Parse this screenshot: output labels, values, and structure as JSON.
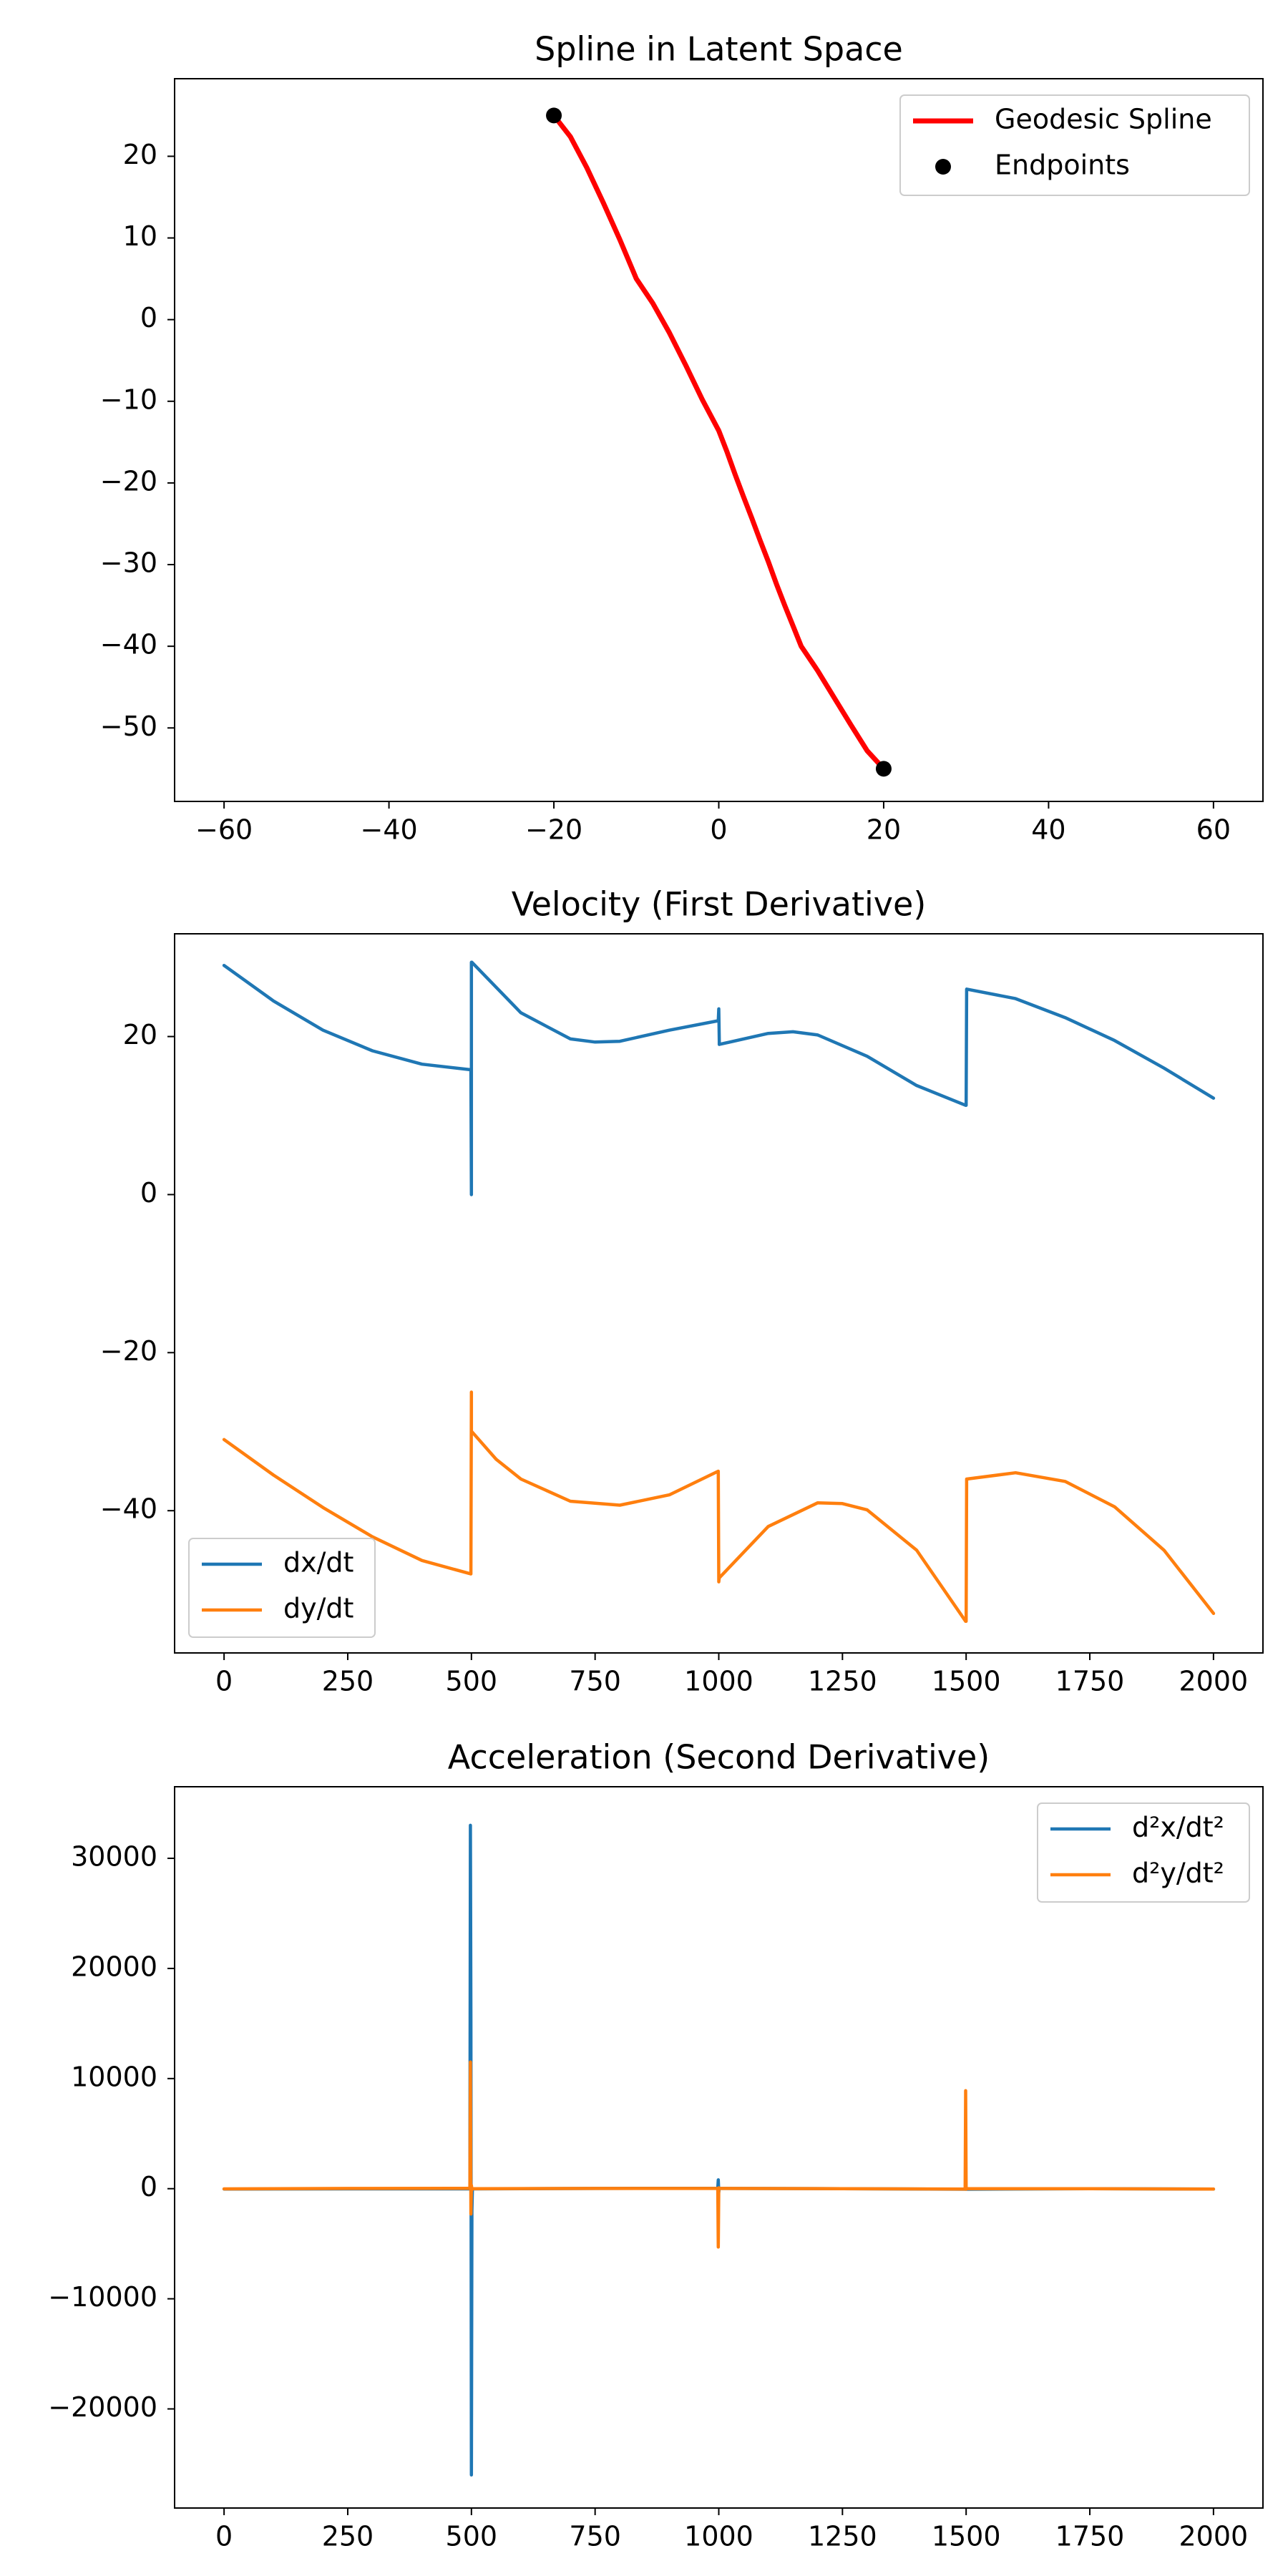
{
  "chart_data": [
    {
      "type": "line",
      "title": "Spline in Latent Space",
      "xlim": [
        -66,
        66
      ],
      "ylim": [
        -59,
        29.5
      ],
      "xticks": [
        -60,
        -40,
        -20,
        0,
        20,
        40,
        60
      ],
      "yticks": [
        20,
        10,
        0,
        -10,
        -20,
        -30,
        -40,
        -50
      ],
      "xtick_labels": [
        "−60",
        "−40",
        "−20",
        "0",
        "20",
        "40",
        "60"
      ],
      "ytick_labels": [
        "20",
        "10",
        "0",
        "−10",
        "−20",
        "−30",
        "−40",
        "−50"
      ],
      "grid": false,
      "legend": "upper right",
      "series": [
        {
          "name": "Geodesic Spline",
          "kind": "line",
          "color": "#ff0000",
          "x": [
            -20,
            -18,
            -16,
            -14,
            -12,
            -10,
            -8,
            -6,
            -4,
            -2,
            0,
            1,
            2,
            3,
            4,
            5,
            6,
            7,
            8,
            9,
            10,
            12,
            14,
            16,
            18,
            20
          ],
          "y": [
            25,
            22.4,
            18.6,
            14.3,
            9.8,
            5,
            2,
            -1.6,
            -5.6,
            -9.8,
            -13.6,
            -16.2,
            -19,
            -21.7,
            -24.3,
            -27,
            -29.6,
            -32.4,
            -35,
            -37.5,
            -40,
            -43,
            -46.3,
            -49.6,
            -52.8,
            -55
          ]
        },
        {
          "name": "Endpoints",
          "kind": "scatter",
          "color": "#000000",
          "x": [
            -20,
            20
          ],
          "y": [
            25,
            -55
          ]
        }
      ]
    },
    {
      "type": "line",
      "title": "Velocity (First Derivative)",
      "xlim": [
        -100,
        2100
      ],
      "ylim": [
        -58,
        33
      ],
      "xticks": [
        0,
        250,
        500,
        750,
        1000,
        1250,
        1500,
        1750,
        2000
      ],
      "yticks": [
        20,
        0,
        -20,
        -40
      ],
      "xtick_labels": [
        "0",
        "250",
        "500",
        "750",
        "1000",
        "1250",
        "1500",
        "1750",
        "2000"
      ],
      "ytick_labels": [
        "20",
        "0",
        "−20",
        "−40"
      ],
      "grid": false,
      "legend": "lower left",
      "series": [
        {
          "name": "dx/dt",
          "color": "#1f77b4",
          "x": [
            0,
            100,
            200,
            300,
            400,
            499,
            500,
            500,
            501,
            600,
            700,
            750,
            800,
            900,
            999,
            1000,
            1001,
            1001,
            1100,
            1150,
            1200,
            1300,
            1400,
            1499,
            1500,
            1501,
            1600,
            1700,
            1800,
            1900,
            2000
          ],
          "y": [
            29,
            24.5,
            20.8,
            18.2,
            16.5,
            15.8,
            0,
            29.4,
            29.4,
            23,
            19.7,
            19.3,
            19.4,
            20.8,
            22,
            23.5,
            19.5,
            19,
            20.4,
            20.6,
            20.2,
            17.5,
            13.8,
            11.3,
            11.3,
            26,
            24.8,
            22.4,
            19.5,
            16,
            12.2
          ]
        },
        {
          "name": "dy/dt",
          "color": "#ff7f0e",
          "x": [
            0,
            100,
            200,
            300,
            400,
            499,
            500,
            500,
            501,
            550,
            600,
            700,
            800,
            900,
            999,
            1000,
            1001,
            1100,
            1200,
            1250,
            1300,
            1400,
            1499,
            1500,
            1501,
            1600,
            1700,
            1800,
            1900,
            2000
          ],
          "y": [
            -31,
            -35.5,
            -39.6,
            -43.3,
            -46.3,
            -48,
            -25,
            -30,
            -30,
            -33.5,
            -36,
            -38.8,
            -39.3,
            -38,
            -35,
            -49,
            -48.5,
            -42,
            -39,
            -39.1,
            -39.9,
            -45,
            -54,
            -54,
            -36,
            -35.2,
            -36.3,
            -39.5,
            -45,
            -53
          ]
        }
      ]
    },
    {
      "type": "line",
      "title": "Acceleration (Second Derivative)",
      "xlim": [
        -100,
        2100
      ],
      "ylim": [
        -29000,
        36500
      ],
      "xticks": [
        0,
        250,
        500,
        750,
        1000,
        1250,
        1500,
        1750,
        2000
      ],
      "yticks": [
        30000,
        20000,
        10000,
        0,
        -10000,
        -20000
      ],
      "xtick_labels": [
        "0",
        "250",
        "500",
        "750",
        "1000",
        "1250",
        "1500",
        "1750",
        "2000"
      ],
      "ytick_labels": [
        "30000",
        "20000",
        "10000",
        "0",
        "−10000",
        "−20000"
      ],
      "grid": false,
      "legend": "upper right",
      "series": [
        {
          "name": "d²x/dt²",
          "color": "#1f77b4",
          "x": [
            0,
            250,
            497,
            498,
            499,
            500,
            501,
            502,
            750,
            998,
            999,
            1000,
            1001,
            1002,
            1250,
            1500,
            1750,
            2000
          ],
          "y": [
            -30,
            -20,
            -20,
            33000,
            15000,
            -26000,
            -2000,
            -20,
            20,
            40,
            800,
            -300,
            50,
            20,
            0,
            -50,
            0,
            -40
          ]
        },
        {
          "name": "d²y/dt²",
          "color": "#ff7f0e",
          "x": [
            0,
            250,
            497,
            498,
            499,
            500,
            501,
            502,
            750,
            998,
            999,
            1000,
            1001,
            1002,
            1250,
            1498,
            1499,
            1500,
            1501,
            1502,
            1750,
            2000
          ],
          "y": [
            -20,
            20,
            30,
            11500,
            -2300,
            300,
            -100,
            0,
            20,
            30,
            -5300,
            80,
            0,
            20,
            0,
            -40,
            8900,
            -50,
            40,
            0,
            0,
            -30
          ]
        }
      ]
    }
  ]
}
